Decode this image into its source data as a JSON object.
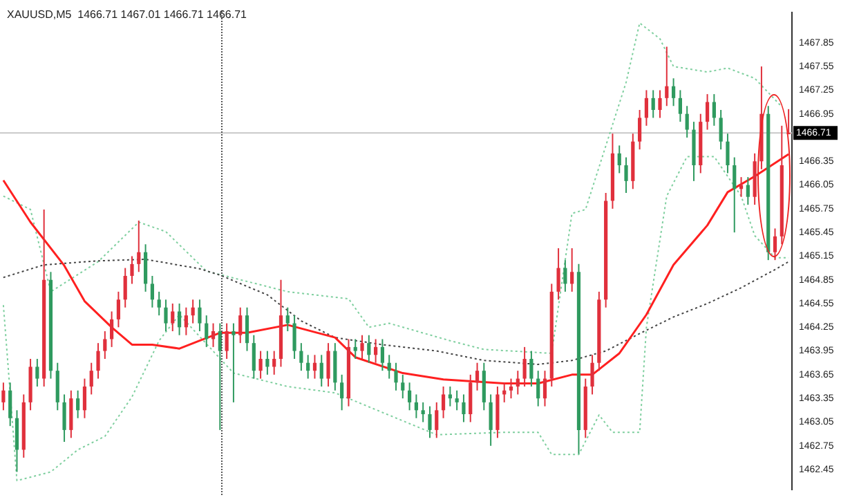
{
  "chart_data": {
    "type": "candlestick",
    "title": "XAUUSD,M5  1466.71 1467.01 1466.71 1466.71",
    "categories": [
      null,
      null,
      null,
      null,
      null,
      null,
      null,
      null,
      null,
      null,
      null,
      null,
      null,
      null,
      null,
      null,
      null,
      null,
      null,
      null,
      null,
      null,
      null,
      null,
      null,
      null,
      null,
      null,
      null,
      null,
      null,
      null,
      null,
      null,
      null,
      null,
      null,
      null,
      null,
      null,
      null,
      null,
      null,
      null,
      null,
      null,
      null,
      null,
      null,
      null,
      null,
      null,
      null,
      null,
      null,
      null,
      null,
      null,
      null,
      null,
      null,
      null,
      null,
      null,
      null,
      null,
      null,
      null,
      null,
      null,
      null,
      null,
      null,
      null,
      null,
      null,
      null,
      null,
      null,
      null,
      null,
      null,
      null,
      null,
      null,
      null,
      null,
      null,
      null,
      null,
      null,
      null,
      null,
      null,
      null,
      null,
      null,
      null,
      null,
      null,
      null,
      null,
      null,
      null,
      null,
      null,
      null,
      null,
      null,
      null,
      null,
      null,
      null,
      null,
      null,
      null,
      null
    ],
    "ohlc": [
      [
        1463.3,
        1463.55,
        1463.2,
        1463.45
      ],
      [
        1463.45,
        1463.55,
        1463.0,
        1463.1
      ],
      [
        1463.1,
        1463.2,
        1462.42,
        1462.7
      ],
      [
        1462.7,
        1463.4,
        1462.6,
        1463.3
      ],
      [
        1463.3,
        1463.85,
        1463.2,
        1463.75
      ],
      [
        1463.75,
        1463.85,
        1463.5,
        1463.6
      ],
      [
        1463.6,
        1465.74,
        1463.5,
        1464.85
      ],
      [
        1464.85,
        1464.95,
        1463.6,
        1463.7
      ],
      [
        1463.7,
        1463.8,
        1463.2,
        1463.3
      ],
      [
        1463.3,
        1463.4,
        1462.8,
        1462.95
      ],
      [
        1462.95,
        1463.45,
        1462.85,
        1463.35
      ],
      [
        1463.35,
        1463.45,
        1463.1,
        1463.2
      ],
      [
        1463.2,
        1463.6,
        1463.1,
        1463.5
      ],
      [
        1463.5,
        1463.8,
        1463.4,
        1463.7
      ],
      [
        1463.7,
        1464.05,
        1463.6,
        1463.95
      ],
      [
        1463.95,
        1464.2,
        1463.85,
        1464.1
      ],
      [
        1464.1,
        1464.45,
        1464.0,
        1464.35
      ],
      [
        1464.35,
        1464.7,
        1464.25,
        1464.6
      ],
      [
        1464.6,
        1465.0,
        1464.5,
        1464.9
      ],
      [
        1464.9,
        1465.15,
        1464.8,
        1465.05
      ],
      [
        1465.05,
        1465.6,
        1464.95,
        1465.2
      ],
      [
        1465.2,
        1465.3,
        1464.7,
        1464.8
      ],
      [
        1464.8,
        1464.9,
        1464.5,
        1464.6
      ],
      [
        1464.6,
        1464.7,
        1464.4,
        1464.5
      ],
      [
        1464.5,
        1464.6,
        1464.2,
        1464.3
      ],
      [
        1464.3,
        1464.55,
        1464.2,
        1464.45
      ],
      [
        1464.45,
        1464.55,
        1464.15,
        1464.25
      ],
      [
        1464.25,
        1464.5,
        1464.15,
        1464.4
      ],
      [
        1464.4,
        1464.6,
        1464.3,
        1464.5
      ],
      [
        1464.5,
        1464.6,
        1464.2,
        1464.3
      ],
      [
        1464.3,
        1464.4,
        1464.0,
        1464.1
      ],
      [
        1464.1,
        1464.3,
        1464.0,
        1464.2
      ],
      [
        1464.2,
        1464.3,
        1462.95,
        1463.95
      ],
      [
        1463.95,
        1464.3,
        1463.85,
        1464.2
      ],
      [
        1464.2,
        1464.3,
        1463.3,
        1464.15
      ],
      [
        1464.15,
        1464.5,
        1464.05,
        1464.4
      ],
      [
        1464.4,
        1464.5,
        1463.95,
        1464.05
      ],
      [
        1464.05,
        1464.15,
        1463.6,
        1463.7
      ],
      [
        1463.7,
        1463.95,
        1463.6,
        1463.85
      ],
      [
        1463.85,
        1463.95,
        1463.65,
        1463.75
      ],
      [
        1463.75,
        1463.95,
        1463.65,
        1463.85
      ],
      [
        1463.85,
        1464.85,
        1463.75,
        1464.4
      ],
      [
        1464.4,
        1464.5,
        1464.2,
        1464.3
      ],
      [
        1464.3,
        1464.4,
        1463.85,
        1463.95
      ],
      [
        1463.95,
        1464.05,
        1463.7,
        1463.8
      ],
      [
        1463.8,
        1463.9,
        1463.6,
        1463.7
      ],
      [
        1463.7,
        1463.9,
        1463.6,
        1463.8
      ],
      [
        1463.8,
        1463.9,
        1463.5,
        1463.6
      ],
      [
        1463.6,
        1464.05,
        1463.5,
        1463.95
      ],
      [
        1463.95,
        1464.05,
        1463.45,
        1463.55
      ],
      [
        1463.55,
        1463.65,
        1463.2,
        1463.35
      ],
      [
        1463.35,
        1464.1,
        1463.25,
        1464.0
      ],
      [
        1464.0,
        1464.1,
        1463.85,
        1463.95
      ],
      [
        1463.95,
        1464.15,
        1463.85,
        1464.05
      ],
      [
        1464.05,
        1464.15,
        1463.8,
        1463.9
      ],
      [
        1463.9,
        1464.1,
        1463.8,
        1464.0
      ],
      [
        1464.0,
        1464.1,
        1463.7,
        1463.8
      ],
      [
        1463.8,
        1463.9,
        1463.6,
        1463.7
      ],
      [
        1463.7,
        1463.8,
        1463.45,
        1463.55
      ],
      [
        1463.55,
        1463.65,
        1463.35,
        1463.45
      ],
      [
        1463.45,
        1463.55,
        1463.2,
        1463.3
      ],
      [
        1463.3,
        1463.4,
        1463.1,
        1463.2
      ],
      [
        1463.2,
        1463.3,
        1463.05,
        1463.15
      ],
      [
        1463.15,
        1463.25,
        1462.85,
        1462.95
      ],
      [
        1462.95,
        1463.3,
        1462.85,
        1463.2
      ],
      [
        1463.2,
        1463.5,
        1463.1,
        1463.4
      ],
      [
        1463.4,
        1463.5,
        1463.25,
        1463.35
      ],
      [
        1463.35,
        1463.45,
        1463.2,
        1463.3
      ],
      [
        1463.3,
        1463.4,
        1463.05,
        1463.15
      ],
      [
        1463.15,
        1463.65,
        1463.05,
        1463.55
      ],
      [
        1463.55,
        1463.8,
        1463.45,
        1463.7
      ],
      [
        1463.7,
        1463.8,
        1463.2,
        1463.3
      ],
      [
        1463.3,
        1463.4,
        1462.75,
        1462.95
      ],
      [
        1462.95,
        1463.5,
        1462.85,
        1463.4
      ],
      [
        1463.4,
        1463.55,
        1463.3,
        1463.45
      ],
      [
        1463.45,
        1463.6,
        1463.35,
        1463.5
      ],
      [
        1463.5,
        1463.7,
        1463.4,
        1463.6
      ],
      [
        1463.6,
        1464.0,
        1463.5,
        1463.85
      ],
      [
        1463.85,
        1463.95,
        1463.5,
        1463.6
      ],
      [
        1463.6,
        1463.7,
        1463.25,
        1463.35
      ],
      [
        1463.35,
        1463.7,
        1463.25,
        1463.6
      ],
      [
        1463.6,
        1464.8,
        1463.5,
        1464.7
      ],
      [
        1464.7,
        1465.25,
        1464.6,
        1465.0
      ],
      [
        1465.0,
        1465.1,
        1464.7,
        1464.8
      ],
      [
        1464.8,
        1465.25,
        1464.7,
        1464.95
      ],
      [
        1464.95,
        1465.05,
        1462.65,
        1462.95
      ],
      [
        1462.95,
        1463.6,
        1462.85,
        1463.5
      ],
      [
        1463.5,
        1463.9,
        1463.4,
        1463.8
      ],
      [
        1463.8,
        1464.7,
        1463.7,
        1464.6
      ],
      [
        1464.6,
        1465.95,
        1464.5,
        1465.85
      ],
      [
        1465.85,
        1466.7,
        1465.75,
        1466.45
      ],
      [
        1466.45,
        1466.55,
        1466.2,
        1466.3
      ],
      [
        1466.3,
        1466.4,
        1465.95,
        1466.1
      ],
      [
        1466.1,
        1466.7,
        1466.0,
        1466.6
      ],
      [
        1466.6,
        1467.0,
        1466.5,
        1466.9
      ],
      [
        1466.9,
        1467.25,
        1466.8,
        1467.15
      ],
      [
        1467.15,
        1467.25,
        1466.9,
        1467.0
      ],
      [
        1467.0,
        1467.25,
        1466.9,
        1467.15
      ],
      [
        1467.15,
        1467.8,
        1467.05,
        1467.3
      ],
      [
        1467.3,
        1467.4,
        1467.05,
        1467.15
      ],
      [
        1467.15,
        1467.25,
        1466.85,
        1466.95
      ],
      [
        1466.95,
        1467.05,
        1466.65,
        1466.75
      ],
      [
        1466.75,
        1466.85,
        1466.1,
        1466.3
      ],
      [
        1466.3,
        1466.95,
        1466.2,
        1466.85
      ],
      [
        1466.85,
        1467.2,
        1466.75,
        1467.1
      ],
      [
        1467.1,
        1467.2,
        1466.8,
        1466.9
      ],
      [
        1466.9,
        1467.0,
        1466.5,
        1466.6
      ],
      [
        1466.6,
        1466.7,
        1466.2,
        1466.3
      ],
      [
        1466.3,
        1466.4,
        1465.45,
        1466.0
      ],
      [
        1466.0,
        1466.15,
        1465.9,
        1466.05
      ],
      [
        1466.05,
        1466.15,
        1465.8,
        1465.9
      ],
      [
        1465.9,
        1466.45,
        1465.8,
        1466.35
      ],
      [
        1466.35,
        1467.55,
        1466.25,
        1466.95
      ],
      [
        1466.95,
        1467.05,
        1465.1,
        1465.2
      ],
      [
        1465.2,
        1465.5,
        1465.1,
        1465.4
      ],
      [
        1465.4,
        1466.8,
        1465.3,
        1466.3
      ],
      [
        1466.71,
        1467.01,
        1466.71,
        1466.71
      ]
    ],
    "colors": [
      "#e0303c",
      "#2f9a5f",
      "#2f9a5f",
      "#e0303c",
      "#e0303c",
      "#2f9a5f",
      "#e0303c",
      "#2f9a5f",
      "#2f9a5f",
      "#2f9a5f",
      "#e0303c",
      "#2f9a5f",
      "#e0303c",
      "#e0303c",
      "#e0303c",
      "#e0303c",
      "#e0303c",
      "#e0303c",
      "#e0303c",
      "#e0303c",
      "#e0303c",
      "#2f9a5f",
      "#2f9a5f",
      "#2f9a5f",
      "#2f9a5f",
      "#e0303c",
      "#2f9a5f",
      "#e0303c",
      "#e0303c",
      "#2f9a5f",
      "#2f9a5f",
      "#e0303c",
      "#2f9a5f",
      "#e0303c",
      "#2f9a5f",
      "#e0303c",
      "#2f9a5f",
      "#2f9a5f",
      "#e0303c",
      "#2f9a5f",
      "#e0303c",
      "#e0303c",
      "#2f9a5f",
      "#2f9a5f",
      "#2f9a5f",
      "#2f9a5f",
      "#e0303c",
      "#2f9a5f",
      "#e0303c",
      "#2f9a5f",
      "#2f9a5f",
      "#e0303c",
      "#2f9a5f",
      "#e0303c",
      "#2f9a5f",
      "#e0303c",
      "#2f9a5f",
      "#2f9a5f",
      "#2f9a5f",
      "#2f9a5f",
      "#2f9a5f",
      "#2f9a5f",
      "#2f9a5f",
      "#2f9a5f",
      "#e0303c",
      "#e0303c",
      "#2f9a5f",
      "#2f9a5f",
      "#2f9a5f",
      "#e0303c",
      "#e0303c",
      "#2f9a5f",
      "#2f9a5f",
      "#e0303c",
      "#e0303c",
      "#e0303c",
      "#e0303c",
      "#e0303c",
      "#2f9a5f",
      "#2f9a5f",
      "#e0303c",
      "#e0303c",
      "#e0303c",
      "#2f9a5f",
      "#e0303c",
      "#2f9a5f",
      "#e0303c",
      "#e0303c",
      "#e0303c",
      "#e0303c",
      "#e0303c",
      "#2f9a5f",
      "#2f9a5f",
      "#e0303c",
      "#e0303c",
      "#e0303c",
      "#2f9a5f",
      "#e0303c",
      "#e0303c",
      "#2f9a5f",
      "#2f9a5f",
      "#2f9a5f",
      "#2f9a5f",
      "#e0303c",
      "#e0303c",
      "#2f9a5f",
      "#2f9a5f",
      "#2f9a5f",
      "#2f9a5f",
      "#e0303c",
      "#2f9a5f",
      "#e0303c",
      "#e0303c",
      "#2f9a5f",
      "#e0303c",
      "#e0303c",
      "#e0303c"
    ],
    "series": [
      {
        "type": "line",
        "color": "#ff2020",
        "line_style": "solid",
        "values": [
          1466.11,
          null,
          null,
          null,
          1465.58,
          null,
          null,
          null,
          null,
          1465.03,
          null,
          null,
          1464.58,
          null,
          null,
          null,
          1464.25,
          null,
          null,
          1464.03,
          null,
          null,
          1464.03,
          null,
          null,
          null,
          1463.98,
          null,
          null,
          1464.08,
          null,
          null,
          1464.18,
          null,
          null,
          null,
          1464.18,
          null,
          null,
          null,
          null,
          null,
          1464.28,
          null,
          null,
          null,
          null,
          null,
          null,
          1464.12,
          null,
          null,
          1463.87,
          null,
          null,
          null,
          null,
          null,
          null,
          1463.67,
          null,
          null,
          null,
          null,
          null,
          1463.59,
          null,
          null,
          null,
          null,
          null,
          null,
          null,
          null,
          1463.54,
          null,
          null,
          null,
          null,
          1463.54,
          null,
          null,
          null,
          null,
          1463.65,
          null,
          null,
          1463.65,
          null,
          null,
          null,
          1463.92,
          null,
          null,
          null,
          1464.41,
          null,
          null,
          null,
          1465.04,
          null,
          null,
          null,
          null,
          1465.54,
          null,
          null,
          1465.96,
          null,
          null,
          null,
          1466.16,
          null,
          null,
          null,
          null,
          1466.44
        ]
      },
      {
        "type": "line",
        "color": "#444444",
        "line_style": "dotted",
        "values": [
          1464.88,
          null,
          null,
          null,
          null,
          null,
          1465.04,
          null,
          null,
          null,
          null,
          null,
          null,
          null,
          1465.09,
          null,
          null,
          null,
          null,
          null,
          null,
          1465.11,
          null,
          null,
          null,
          null,
          null,
          null,
          null,
          1464.99,
          null,
          null,
          1464.91,
          null,
          null,
          null,
          null,
          null,
          null,
          1464.66,
          null,
          null,
          null,
          null,
          1464.33,
          null,
          null,
          null,
          null,
          1464.12,
          null,
          null,
          null,
          null,
          null,
          null,
          1464.03,
          null,
          null,
          null,
          null,
          null,
          null,
          null,
          1463.95,
          null,
          null,
          null,
          null,
          null,
          null,
          1463.83,
          null,
          null,
          null,
          null,
          null,
          null,
          null,
          1463.78,
          null,
          null,
          null,
          null,
          1463.83,
          null,
          null,
          null,
          null,
          1463.95,
          null,
          null,
          null,
          null,
          1464.17,
          null,
          null,
          null,
          null,
          1464.38,
          null,
          null,
          null,
          null,
          1464.55,
          null,
          null,
          null,
          null,
          1464.75,
          null,
          null,
          null,
          null,
          1464.98,
          null,
          1465.08
        ]
      },
      {
        "type": "line",
        "color": "#7fcf9f",
        "line_style": "dotted",
        "values": [
          1465.91,
          null,
          null,
          null,
          1465.74,
          null,
          null,
          1464.7,
          null,
          null,
          null,
          null,
          null,
          null,
          1465.08,
          null,
          null,
          null,
          null,
          null,
          1465.58,
          null,
          null,
          null,
          1465.46,
          null,
          null,
          null,
          null,
          null,
          1464.96,
          null,
          null,
          null,
          null,
          null,
          null,
          null,
          null,
          null,
          null,
          null,
          1464.7,
          null,
          null,
          null,
          null,
          null,
          null,
          null,
          null,
          1464.61,
          null,
          null,
          1464.25,
          null,
          null,
          1464.3,
          null,
          null,
          null,
          null,
          null,
          null,
          null,
          null,
          1464.08,
          null,
          null,
          null,
          null,
          1463.97,
          null,
          null,
          null,
          null,
          null,
          null,
          null,
          null,
          null,
          1463.92,
          null,
          null,
          1465.69,
          null,
          1465.74,
          null,
          null,
          null,
          null,
          null,
          1467.35,
          null,
          1468.1,
          null,
          null,
          1467.9,
          null,
          1467.55,
          null,
          null,
          null,
          null,
          1467.48,
          null,
          null,
          1467.53,
          null,
          null,
          null,
          1467.4,
          null,
          null,
          null,
          1467.04,
          null
        ]
      },
      {
        "type": "line",
        "color": "#7fcf9f",
        "line_style": "dotted",
        "values": [
          1464.53,
          null,
          1462.31,
          null,
          null,
          null,
          null,
          1462.42,
          null,
          null,
          null,
          1462.7,
          null,
          null,
          null,
          1462.87,
          null,
          null,
          null,
          1463.37,
          null,
          null,
          null,
          1464.08,
          null,
          null,
          1464.41,
          null,
          null,
          null,
          null,
          null,
          null,
          null,
          1463.67,
          null,
          null,
          null,
          null,
          null,
          null,
          null,
          1463.5,
          null,
          null,
          null,
          null,
          null,
          null,
          1463.42,
          null,
          null,
          null,
          null,
          null,
          null,
          null,
          null,
          null,
          null,
          null,
          null,
          null,
          null,
          1462.89,
          null,
          null,
          null,
          null,
          null,
          null,
          null,
          null,
          null,
          1462.92,
          null,
          null,
          null,
          null,
          1462.92,
          null,
          1462.64,
          null,
          null,
          null,
          1462.64,
          null,
          null,
          1463.14,
          null,
          1462.92,
          null,
          null,
          null,
          1462.92,
          1464.25,
          null,
          null,
          1465.91,
          null,
          null,
          1466.41,
          null,
          null,
          null,
          1466.41,
          null,
          null,
          null,
          1465.91,
          null,
          1465.41,
          null,
          null,
          1465.13,
          null,
          1465.13
        ]
      }
    ],
    "ylim": [
      1462.2,
      1468.23
    ],
    "yticks": [
      1462.45,
      1462.75,
      1463.05,
      1463.35,
      1463.65,
      1463.95,
      1464.25,
      1464.55,
      1464.85,
      1465.15,
      1465.45,
      1465.75,
      1466.05,
      1466.35,
      1466.95,
      1467.25,
      1467.55,
      1467.85
    ],
    "tick_labels": "y",
    "ref_lines": [
      {
        "axis": "y",
        "value": 1466.71,
        "label": "1466.71",
        "color": "#c8c8c8",
        "line_style": "solid"
      }
    ],
    "grid": false,
    "legend": false,
    "marker": "none"
  }
}
